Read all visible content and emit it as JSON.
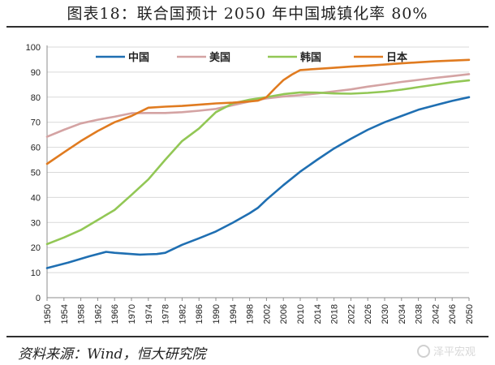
{
  "title": "图表18：联合国预计 2050 年中国城镇化率 80%",
  "source": "资料来源：Wind，恒大研究院",
  "watermark": "泽平宏观",
  "chart_data": {
    "type": "line",
    "title": "图表18：联合国预计 2050 年中国城镇化率 80%",
    "xlabel": "",
    "ylabel": "",
    "xlim": [
      1950,
      2050
    ],
    "ylim": [
      0,
      100
    ],
    "yticks": [
      0,
      10,
      20,
      30,
      40,
      50,
      60,
      70,
      80,
      90,
      100
    ],
    "xticks": [
      1950,
      1954,
      1958,
      1962,
      1966,
      1970,
      1974,
      1978,
      1982,
      1986,
      1990,
      1994,
      1998,
      2002,
      2006,
      2010,
      2014,
      2018,
      2022,
      2026,
      2030,
      2034,
      2038,
      2042,
      2046,
      2050
    ],
    "legend_position": "top",
    "grid": "horizontal",
    "series": [
      {
        "name": "中国",
        "color": "#1f6fb2",
        "x": [
          1950,
          1955,
          1960,
          1964,
          1966,
          1970,
          1972,
          1974,
          1976,
          1978,
          1982,
          1986,
          1990,
          1994,
          1998,
          2000,
          2002,
          2006,
          2010,
          2014,
          2018,
          2022,
          2026,
          2030,
          2034,
          2038,
          2042,
          2046,
          2050
        ],
        "y": [
          11.8,
          14.0,
          16.5,
          18.3,
          17.9,
          17.4,
          17.2,
          17.3,
          17.4,
          17.9,
          21.1,
          23.7,
          26.4,
          29.9,
          33.7,
          35.9,
          39.1,
          44.9,
          50.3,
          55.0,
          59.5,
          63.4,
          67.0,
          70.0,
          72.5,
          75.0,
          76.8,
          78.5,
          80.0
        ]
      },
      {
        "name": "美国",
        "color": "#d4a3a3",
        "x": [
          1950,
          1954,
          1958,
          1962,
          1966,
          1970,
          1974,
          1978,
          1982,
          1986,
          1990,
          1994,
          1998,
          2002,
          2006,
          2010,
          2014,
          2018,
          2022,
          2026,
          2030,
          2034,
          2038,
          2042,
          2046,
          2050
        ],
        "y": [
          64.2,
          67.0,
          69.5,
          71.0,
          72.2,
          73.6,
          73.7,
          73.7,
          74.0,
          74.6,
          75.3,
          76.8,
          78.3,
          79.5,
          80.3,
          80.8,
          81.5,
          82.3,
          83.1,
          84.2,
          85.1,
          86.1,
          86.9,
          87.7,
          88.4,
          89.2
        ]
      },
      {
        "name": "韩国",
        "color": "#92c755",
        "x": [
          1950,
          1954,
          1958,
          1962,
          1966,
          1970,
          1974,
          1978,
          1982,
          1986,
          1990,
          1994,
          1998,
          2002,
          2006,
          2010,
          2014,
          2018,
          2022,
          2026,
          2030,
          2034,
          2038,
          2042,
          2046,
          2050
        ],
        "y": [
          21.4,
          24.0,
          27.0,
          31.0,
          35.0,
          41.0,
          47.2,
          55.0,
          62.5,
          67.5,
          74.0,
          77.5,
          79.0,
          80.0,
          81.2,
          81.9,
          81.8,
          81.5,
          81.4,
          81.7,
          82.2,
          83.0,
          84.0,
          85.0,
          86.0,
          86.7
        ]
      },
      {
        "name": "日本",
        "color": "#e07b20",
        "x": [
          1950,
          1954,
          1958,
          1962,
          1966,
          1970,
          1974,
          1978,
          1982,
          1986,
          1990,
          1994,
          1998,
          2000,
          2002,
          2004,
          2006,
          2008,
          2010,
          2014,
          2018,
          2022,
          2026,
          2030,
          2034,
          2038,
          2042,
          2046,
          2050
        ],
        "y": [
          53.4,
          58.0,
          62.5,
          66.5,
          70.0,
          72.5,
          75.8,
          76.2,
          76.5,
          77.0,
          77.5,
          77.8,
          78.3,
          78.6,
          80.0,
          83.5,
          86.8,
          89.0,
          90.8,
          91.3,
          91.7,
          92.2,
          92.6,
          93.0,
          93.5,
          93.9,
          94.3,
          94.6,
          94.9
        ]
      }
    ]
  }
}
